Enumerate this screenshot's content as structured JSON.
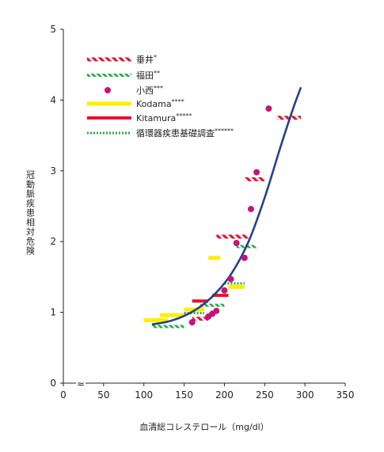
{
  "chart_data": {
    "type": "scatter",
    "xlabel": "血清総コレステロール（mg/dl）",
    "ylabel": "冠動脈疾患相対危険",
    "xlim": [
      0,
      350
    ],
    "ylim": [
      0,
      5
    ],
    "x_ticks": [
      "0",
      "50",
      "100",
      "150",
      "200",
      "250",
      "300",
      "350"
    ],
    "y_ticks": [
      "0",
      "1",
      "2",
      "3",
      "4",
      "5"
    ],
    "x_tick_values": [
      0,
      50,
      100,
      150,
      200,
      250,
      300,
      350
    ],
    "y_tick_values": [
      0,
      1,
      2,
      3,
      4,
      5
    ],
    "axis_break": "≈",
    "grid": false,
    "legend_position": "top-left",
    "legend": [
      {
        "name": "垂井",
        "sup": "*",
        "style": "red-hatched",
        "color": "#e8102e"
      },
      {
        "name": "福田",
        "sup": "**",
        "style": "green-hatched",
        "color": "#2aa84a"
      },
      {
        "name": "小西",
        "sup": "***",
        "style": "magenta-dot",
        "color": "#c8137a"
      },
      {
        "name": "Kodama",
        "sup": "****",
        "style": "yellow-bar",
        "color": "#ffee00"
      },
      {
        "name": "Kitamura",
        "sup": "*****",
        "style": "red-bar",
        "color": "#e8102e"
      },
      {
        "name": "循環器疾患基礎調査",
        "sup": "******",
        "style": "green-dotted",
        "color": "#2aa84a"
      }
    ],
    "series": [
      {
        "name": "垂井",
        "type": "segments",
        "style": "red-hatched",
        "segments": [
          [
            160,
            180,
            0.91
          ],
          [
            190,
            230,
            2.07
          ],
          [
            225,
            250,
            2.88
          ],
          [
            265,
            295,
            3.75
          ]
        ]
      },
      {
        "name": "福田",
        "type": "segments",
        "style": "green-hatched",
        "segments": [
          [
            110,
            150,
            0.8
          ],
          [
            170,
            200,
            1.1
          ],
          [
            215,
            240,
            1.93
          ]
        ]
      },
      {
        "name": "小西",
        "type": "points",
        "style": "magenta-dot",
        "points": [
          [
            160,
            0.86
          ],
          [
            180,
            0.94
          ],
          [
            185,
            0.98
          ],
          [
            190,
            1.02
          ],
          [
            200,
            1.31
          ],
          [
            208,
            1.47
          ],
          [
            215,
            1.98
          ],
          [
            225,
            1.77
          ],
          [
            233,
            2.46
          ],
          [
            240,
            2.98
          ],
          [
            255,
            3.88
          ]
        ]
      },
      {
        "name": "Kodama",
        "type": "segments",
        "style": "yellow-bar",
        "segments": [
          [
            100,
            130,
            0.89
          ],
          [
            120,
            150,
            0.96
          ],
          [
            150,
            175,
            1.04
          ],
          [
            180,
            195,
            1.77
          ],
          [
            205,
            225,
            1.36
          ]
        ]
      },
      {
        "name": "Kitamura",
        "type": "segments",
        "style": "red-bar",
        "segments": [
          [
            160,
            180,
            1.16
          ],
          [
            185,
            205,
            1.24
          ]
        ]
      },
      {
        "name": "循環器疾患基礎調査",
        "type": "segments",
        "style": "green-dotted",
        "segments": [
          [
            150,
            175,
            0.99
          ],
          [
            200,
            225,
            1.41
          ]
        ]
      },
      {
        "name": "",
        "type": "curve",
        "color": "#26408b",
        "points": [
          [
            110,
            0.83
          ],
          [
            130,
            0.87
          ],
          [
            150,
            0.95
          ],
          [
            170,
            1.08
          ],
          [
            190,
            1.28
          ],
          [
            210,
            1.57
          ],
          [
            230,
            2.0
          ],
          [
            250,
            2.62
          ],
          [
            270,
            3.35
          ],
          [
            285,
            3.87
          ],
          [
            295,
            4.18
          ]
        ]
      }
    ]
  }
}
